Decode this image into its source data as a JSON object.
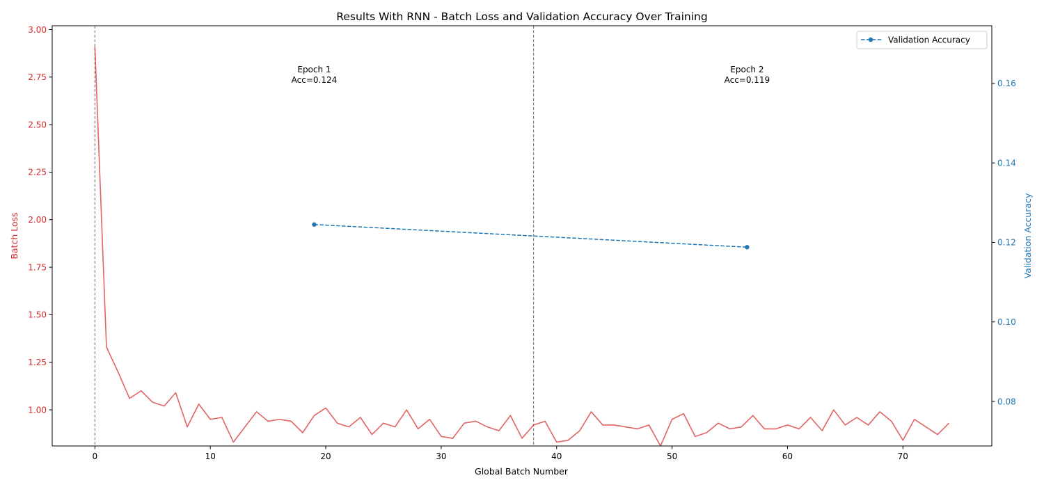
{
  "chart_data": {
    "type": "line",
    "title": "Results With RNN - Batch Loss and Validation Accuracy Over Training",
    "xlabel": "Global Batch Number",
    "ylabel_left": "Batch Loss",
    "ylabel_right": "Validation Accuracy",
    "xlim": [
      -3.7,
      77.7
    ],
    "ylim_left": [
      0.81,
      3.02
    ],
    "ylim_right": [
      0.0688,
      0.1745
    ],
    "x_ticks": [
      "0",
      "10",
      "20",
      "30",
      "40",
      "50",
      "60",
      "70"
    ],
    "y_left_ticks": [
      "1.00",
      "1.25",
      "1.50",
      "1.75",
      "2.00",
      "2.25",
      "2.50",
      "2.75",
      "3.00"
    ],
    "y_right_ticks": [
      "0.08",
      "0.10",
      "0.12",
      "0.14",
      "0.16"
    ],
    "grid": false,
    "legend_position": "top-right",
    "colors": {
      "loss": "#d62728",
      "accuracy": "#1f77b4",
      "epoch_line": "#808080"
    },
    "series": [
      {
        "axis": "left",
        "style": "solid",
        "x": [
          0,
          1,
          2,
          3,
          4,
          5,
          6,
          7,
          8,
          9,
          10,
          11,
          12,
          13,
          14,
          15,
          16,
          17,
          18,
          19,
          20,
          21,
          22,
          23,
          24,
          25,
          26,
          27,
          28,
          29,
          30,
          31,
          32,
          33,
          34,
          35,
          36,
          37,
          38,
          39,
          40,
          41,
          42,
          43,
          44,
          45,
          46,
          47,
          48,
          49,
          50,
          51,
          52,
          53,
          54,
          55,
          56,
          57,
          58,
          59,
          60,
          61,
          62,
          63,
          64,
          65,
          66,
          67,
          68,
          69,
          70,
          71,
          72,
          73,
          74
        ],
        "values": [
          2.91,
          1.33,
          1.2,
          1.06,
          1.1,
          1.04,
          1.02,
          1.09,
          0.91,
          1.03,
          0.95,
          0.96,
          0.83,
          0.91,
          0.99,
          0.94,
          0.95,
          0.94,
          0.88,
          0.97,
          1.01,
          0.93,
          0.91,
          0.96,
          0.87,
          0.93,
          0.91,
          1.0,
          0.9,
          0.95,
          0.86,
          0.85,
          0.93,
          0.94,
          0.91,
          0.89,
          0.97,
          0.85,
          0.92,
          0.94,
          0.83,
          0.84,
          0.89,
          0.99,
          0.92,
          0.92,
          0.91,
          0.9,
          0.92,
          0.81,
          0.95,
          0.98,
          0.86,
          0.88,
          0.93,
          0.9,
          0.91,
          0.97,
          0.9,
          0.9,
          0.92,
          0.9,
          0.96,
          0.89,
          1.0,
          0.92,
          0.96,
          0.92,
          0.99,
          0.94,
          0.84,
          0.95,
          0.91,
          0.87,
          0.93
        ]
      },
      {
        "name": "Validation Accuracy",
        "axis": "right",
        "style": "dashed",
        "marker": "circle",
        "x": [
          19,
          56.5
        ],
        "values": [
          0.1245,
          0.1188
        ]
      }
    ],
    "epoch_lines": [
      0,
      38
    ],
    "annotations": [
      {
        "line1": "Epoch 1",
        "line2": "Acc=0.124",
        "x": 19
      },
      {
        "line1": "Epoch 2",
        "line2": "Acc=0.119",
        "x": 56.5
      }
    ]
  }
}
